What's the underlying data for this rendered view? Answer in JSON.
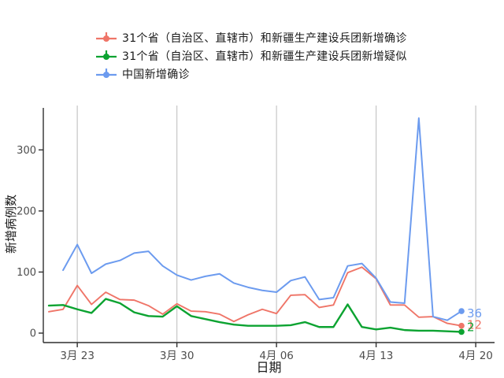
{
  "chart": {
    "background": "#ffffff",
    "axis_color": "#2f2f2f",
    "grid_color": "#c6c6c6",
    "tick_label_color": "#4d4d4d",
    "legend_text_color": "#1a1a1a"
  },
  "chart_data": {
    "type": "line",
    "title": "",
    "xlabel": "日期",
    "ylabel": "新增病例数",
    "grid": "vertical-major-only",
    "legend_position": "top-left",
    "ylim": [
      0,
      365
    ],
    "y_ticks": [
      0,
      100,
      200,
      300
    ],
    "x_tick_labels": [
      "3月 23",
      "3月 30",
      "4月 06",
      "4月 13",
      "4月 20"
    ],
    "x_tick_indices": [
      2,
      9,
      16,
      23,
      30
    ],
    "x": [
      "3月21",
      "3月22",
      "3月23",
      "3月24",
      "3月25",
      "3月26",
      "3月27",
      "3月28",
      "3月29",
      "3月30",
      "3月31",
      "4月01",
      "4月02",
      "4月03",
      "4月04",
      "4月05",
      "4月06",
      "4月07",
      "4月08",
      "4月09",
      "4月10",
      "4月11",
      "4月12",
      "4月13",
      "4月14",
      "4月15",
      "4月16",
      "4月17",
      "4月18",
      "4月19"
    ],
    "series": [
      {
        "name": "31个省（自治区、直辖市）和新疆生产建设兵团新增确诊",
        "color": "#EF7568",
        "end_label": "12",
        "values": [
          35,
          39,
          78,
          47,
          67,
          55,
          54,
          45,
          31,
          48,
          36,
          35,
          31,
          19,
          30,
          39,
          32,
          62,
          63,
          42,
          46,
          99,
          108,
          89,
          46,
          46,
          26,
          27,
          16,
          12
        ]
      },
      {
        "name": "31个省（自治区、直辖市）和新疆生产建设兵团新增疑似",
        "color": "#0CA331",
        "end_label": "2",
        "values": [
          45,
          46,
          39,
          33,
          56,
          49,
          34,
          28,
          27,
          44,
          28,
          23,
          18,
          14,
          12,
          12,
          12,
          13,
          18,
          10,
          10,
          47,
          10,
          6,
          9,
          5,
          4,
          4,
          3,
          2
        ]
      },
      {
        "name": "中国新增确诊",
        "color": "#6C9BEF",
        "end_label": "36",
        "values": [
          null,
          103,
          145,
          98,
          113,
          119,
          131,
          134,
          110,
          95,
          87,
          93,
          97,
          82,
          75,
          70,
          67,
          86,
          92,
          55,
          58,
          110,
          114,
          90,
          51,
          49,
          352,
          27,
          21,
          36
        ]
      }
    ]
  }
}
